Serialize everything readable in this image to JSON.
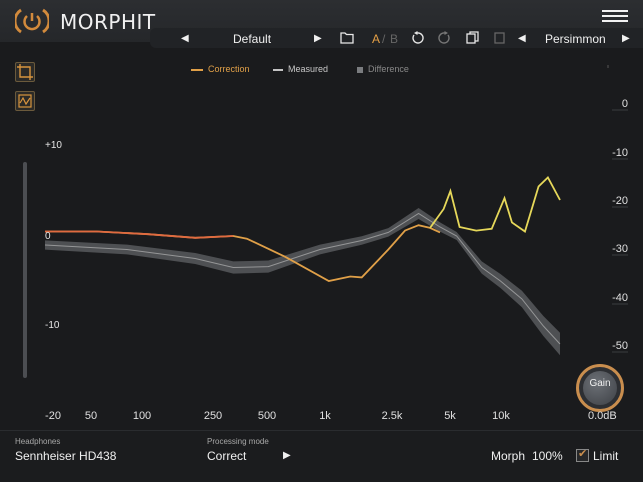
{
  "app": {
    "title": "MORPHIT"
  },
  "toolbar": {
    "preset": "Default",
    "a_label": "A",
    "b_label": "B",
    "target": "Persimmon"
  },
  "legend": {
    "correction": "Correction",
    "measured": "Measured",
    "difference": "Difference"
  },
  "colors": {
    "correction": "#e0a048",
    "correction_low": "#e06a40",
    "target_curve": "#e6d85a",
    "measured": "#c4c4c4",
    "difference": "#7a7c7f",
    "accent": "#c98e4e"
  },
  "icons": {
    "logo": "power-bracket-icon",
    "menu": "hamburger-icon",
    "prev": "chevron-left-icon",
    "next": "chevron-right-icon",
    "folder": "folder-icon",
    "undo": "undo-icon",
    "redo": "redo-icon",
    "copy": "copy-icon",
    "paste": "paste-icon",
    "crop": "crop-icon",
    "graph": "graph-icon",
    "check": "check-icon"
  },
  "chart_data": {
    "type": "line",
    "x_scale": "log",
    "xlim": [
      20,
      20000
    ],
    "x_ticks": [
      "-20",
      "50",
      "100",
      "250",
      "500",
      "1k",
      "2.5k",
      "5k",
      "10k"
    ],
    "left_ticks": [
      "+10",
      "0",
      "-10"
    ],
    "right_ticks": [
      "0",
      "-10",
      "-20",
      "-30",
      "-40",
      "-50"
    ],
    "series": [
      {
        "name": "Correction",
        "x": [
          20,
          40,
          80,
          150,
          250,
          300,
          500,
          900,
          1200,
          1400,
          2000,
          2500,
          3000,
          3500,
          4000
        ],
        "y": [
          0.5,
          0.5,
          0.2,
          -0.2,
          0,
          -0.3,
          -2.3,
          -5,
          -4.5,
          -4.6,
          -1.5,
          0.6,
          1.2,
          0.9,
          0.4
        ]
      },
      {
        "name": "Measured",
        "x": [
          20,
          60,
          150,
          250,
          400,
          800,
          1400,
          2000,
          3000,
          4000,
          5000,
          7000,
          9000,
          12000,
          16000,
          20000
        ],
        "y": [
          -1,
          -1.5,
          -2.5,
          -3.5,
          -3.4,
          -1.5,
          -0.5,
          0.4,
          2.5,
          1,
          0,
          -3.5,
          -5,
          -7,
          -10,
          -12
        ]
      }
    ],
    "grid": false
  },
  "gain": {
    "label": "Gain",
    "value": "0.0dB"
  },
  "footer": {
    "headphones_caption": "Headphones",
    "headphones_value": "Sennheiser HD438",
    "mode_caption": "Processing mode",
    "mode_value": "Correct",
    "morph_label": "Morph",
    "morph_value": "100%",
    "limit_label": "Limit",
    "limit_checked": true
  }
}
